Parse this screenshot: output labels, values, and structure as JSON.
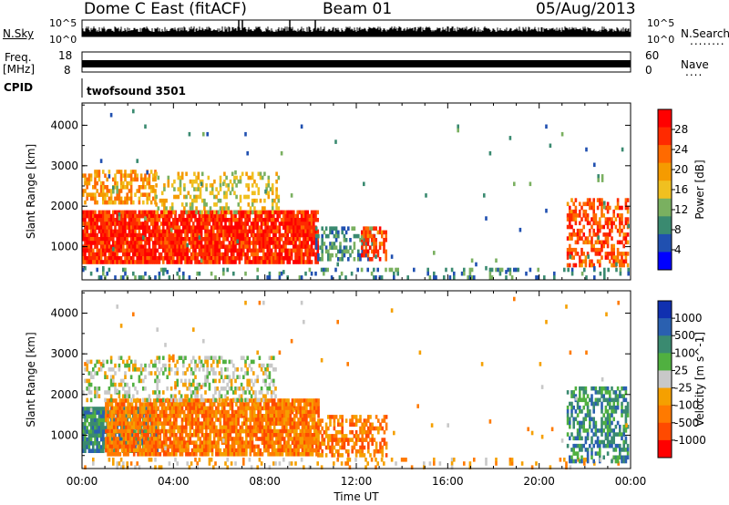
{
  "header": {
    "title": "Dome C East (fitACF)",
    "beam": "Beam 01",
    "date": "05/Aug/2013"
  },
  "top_panel": {
    "nsky_label": "N.Sky",
    "left_ticks": [
      "10^5",
      "10^0"
    ],
    "right_ticks": [
      "10^5",
      "10^0"
    ],
    "nsearch_label": "N.Search",
    "nsearch_dots": "........"
  },
  "freq_panel": {
    "freq_label": "Freq.",
    "freq_unit": "[MHz]",
    "left_ticks": [
      "18",
      "8"
    ],
    "right_ticks": [
      "60",
      "0"
    ],
    "nave_label": "Nave",
    "nave_dots": "...."
  },
  "cpid": {
    "label": "CPID",
    "value": "twofsound 3501"
  },
  "chart_data": [
    {
      "type": "heatmap",
      "name": "power",
      "ylabel": "Slant Range [km]",
      "yticks": [
        1000,
        2000,
        3000,
        4000
      ],
      "ylim": [
        180,
        4550
      ],
      "xlim": [
        0,
        24
      ],
      "colorbar_label": "Power [dB]",
      "colorbar_ticks": [
        4,
        8,
        12,
        16,
        20,
        24,
        28
      ],
      "colorbar_range": [
        0,
        32
      ],
      "colorbar_colors": [
        "#0000ff",
        "#2050b0",
        "#3a8a70",
        "#7ab060",
        "#f0c020",
        "#f59b00",
        "#ff6a00",
        "#ff2a00",
        "#ff0000"
      ],
      "regions": [
        {
          "t0": 0.0,
          "t1": 10.3,
          "r0": 650,
          "r1": 1900,
          "level": 29,
          "density": 0.9
        },
        {
          "t0": 0.0,
          "t1": 3.2,
          "r0": 2050,
          "r1": 2900,
          "level": 21,
          "density": 0.55
        },
        {
          "t0": 3.2,
          "t1": 8.6,
          "r0": 1900,
          "r1": 2850,
          "level": 16,
          "density": 0.3
        },
        {
          "t0": 10.2,
          "t1": 12.8,
          "r0": 700,
          "r1": 1500,
          "level": 8,
          "density": 0.5
        },
        {
          "t0": 12.2,
          "t1": 13.3,
          "r0": 700,
          "r1": 1500,
          "level": 26,
          "density": 0.55
        },
        {
          "t0": 0.0,
          "t1": 23.9,
          "r0": 200,
          "r1": 480,
          "level": 8,
          "density": 0.18
        },
        {
          "t0": 21.2,
          "t1": 23.9,
          "r0": 500,
          "r1": 2200,
          "level": 26,
          "density": 0.55
        },
        {
          "t0": 0.0,
          "t1": 23.9,
          "r0": 400,
          "r1": 4400,
          "level": 8,
          "density": 0.006
        }
      ]
    },
    {
      "type": "heatmap",
      "name": "velocity",
      "xlabel": "Time UT",
      "ylabel": "Slant Range [km]",
      "xticks": [
        "00:00",
        "04:00",
        "08:00",
        "12:00",
        "16:00",
        "20:00",
        "00:00"
      ],
      "xtick_hours": [
        0,
        4,
        8,
        12,
        16,
        20,
        24
      ],
      "yticks": [
        1000,
        2000,
        3000,
        4000
      ],
      "ylim": [
        180,
        4550
      ],
      "xlim": [
        0,
        24
      ],
      "colorbar_label": "Velocity [m s^-1]",
      "colorbar_ticks": [
        "1000",
        "500",
        "100",
        "25",
        "-25",
        "-100",
        "-500",
        "-1000"
      ],
      "colorbar_colors": [
        "#1030b0",
        "#2a60b0",
        "#3a8a70",
        "#50b040",
        "#c8c8c8",
        "#f5a000",
        "#ff7a00",
        "#ff4a00",
        "#ff0000"
      ],
      "regions": [
        {
          "t0": 0.0,
          "t1": 3.3,
          "r0": 600,
          "r1": 1700,
          "level": 2,
          "density": 0.85
        },
        {
          "t0": 1.0,
          "t1": 10.3,
          "r0": 500,
          "r1": 1900,
          "level": 6,
          "density": 0.85
        },
        {
          "t0": 0.0,
          "t1": 8.5,
          "r0": 1900,
          "r1": 2950,
          "level": 4,
          "density": 0.35
        },
        {
          "t0": 10.2,
          "t1": 13.3,
          "r0": 500,
          "r1": 1500,
          "level": 6,
          "density": 0.55
        },
        {
          "t0": 0.0,
          "t1": 23.9,
          "r0": 200,
          "r1": 450,
          "level": 5,
          "density": 0.15
        },
        {
          "t0": 21.2,
          "t1": 23.9,
          "r0": 400,
          "r1": 2200,
          "level": 2,
          "density": 0.55
        },
        {
          "t0": 0.0,
          "t1": 23.9,
          "r0": 400,
          "r1": 4400,
          "level": 5,
          "density": 0.006
        }
      ]
    }
  ]
}
